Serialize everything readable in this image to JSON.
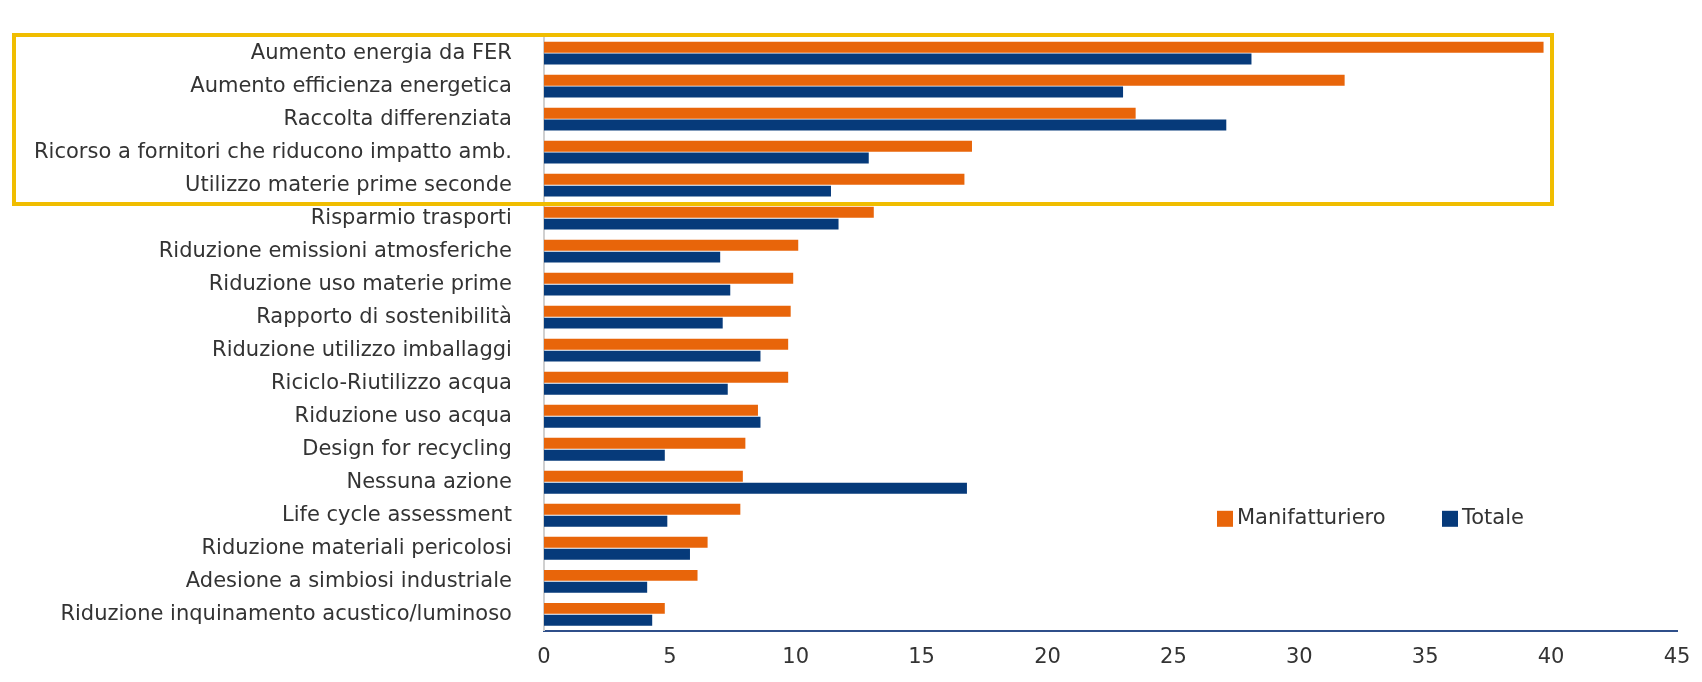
{
  "chart_data": {
    "type": "bar",
    "orientation": "horizontal",
    "categories": [
      "Aumento energia da FER",
      "Aumento efficienza energetica",
      "Raccolta differenziata",
      "Ricorso a fornitori che riducono impatto amb.",
      "Utilizzo materie prime seconde",
      "Risparmio trasporti",
      "Riduzione emissioni atmosferiche",
      "Riduzione uso materie prime",
      "Rapporto di sostenibilità",
      "Riduzione utilizzo imballaggi",
      "Riciclo-Riutilizzo acqua",
      "Riduzione uso acqua",
      "Design for recycling",
      "Nessuna azione",
      "Life cycle assessment",
      "Riduzione materiali pericolosi",
      "Adesione a simbiosi industriale",
      "Riduzione inquinamento acustico/luminoso"
    ],
    "series": [
      {
        "name": "Manifatturiero",
        "color": "#e8650a",
        "values": [
          39.7,
          31.8,
          23.5,
          17,
          16.7,
          13.1,
          10.1,
          9.9,
          9.8,
          9.7,
          9.7,
          8.5,
          8,
          7.9,
          7.8,
          6.5,
          6.1,
          4.8
        ]
      },
      {
        "name": "Totale",
        "color": "#063a7a",
        "values": [
          28.1,
          23,
          27.1,
          12.9,
          11.4,
          11.7,
          7,
          7.4,
          7.1,
          8.6,
          7.3,
          8.6,
          4.8,
          16.8,
          4.9,
          5.8,
          4.1,
          4.3
        ]
      }
    ],
    "xlim": [
      0,
      45
    ],
    "xticks": [
      0,
      5,
      10,
      15,
      20,
      25,
      30,
      35,
      40,
      45
    ],
    "grid": false,
    "legend": "bottom right"
  }
}
